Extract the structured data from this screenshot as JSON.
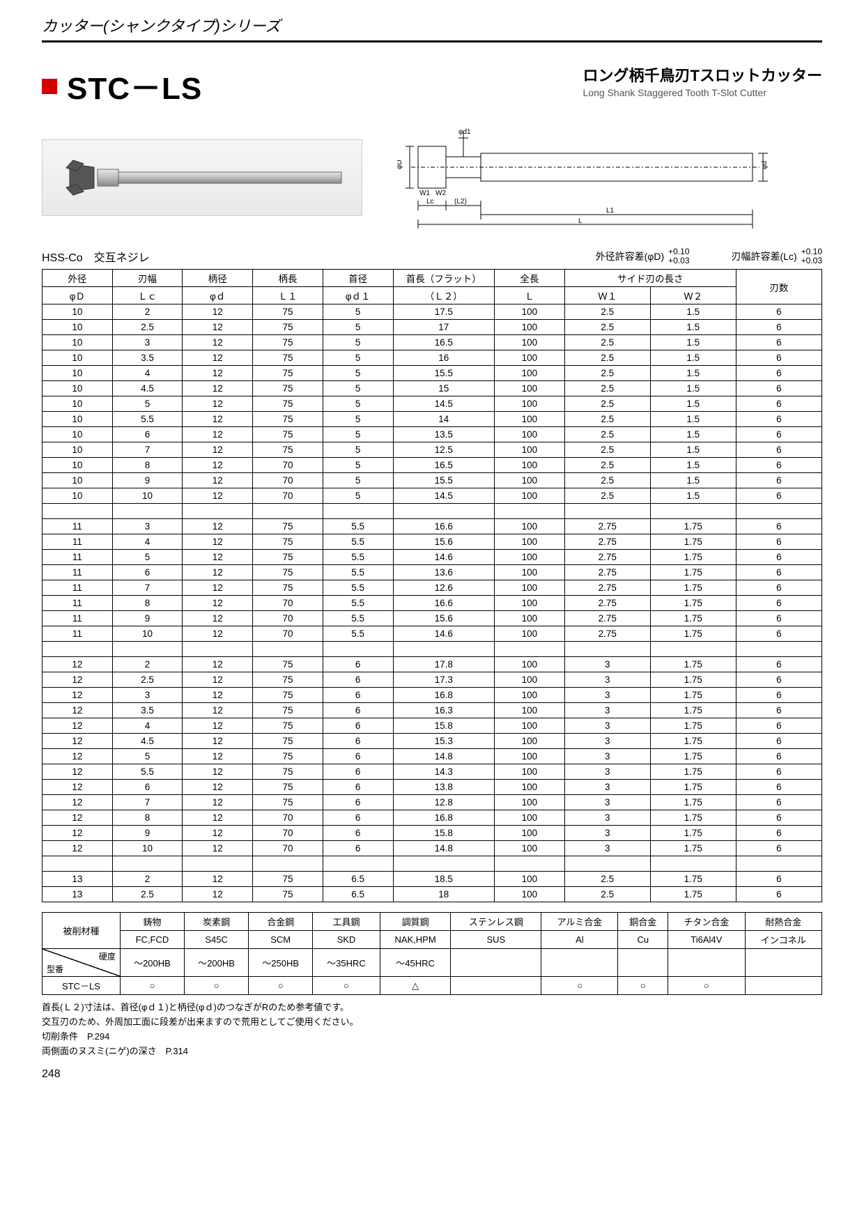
{
  "page_header": "カッター(シャンクタイプ)シリーズ",
  "product_code": "STC－LS",
  "product_name_jp": "ロング柄千鳥刃Tスロットカッター",
  "product_name_en": "Long Shank Staggered Tooth T-Slot Cutter",
  "subhead_left": "HSS-Co　交互ネジレ",
  "tolerance_od_label": "外径許容差(φD)",
  "tolerance_od_upper": "+0.10",
  "tolerance_od_lower": "+0.03",
  "tolerance_lc_label": "刃幅許容差(Lc)",
  "tolerance_lc_upper": "+0.10",
  "tolerance_lc_lower": "+0.03",
  "spec_table": {
    "header_row1": [
      "外径",
      "刃幅",
      "柄径",
      "柄長",
      "首径",
      "首長（フラット）",
      "全長",
      "サイド刃の長さ",
      "",
      "刃数"
    ],
    "header_row2": [
      "φＤ",
      "Ｌｃ",
      "φｄ",
      "Ｌ１",
      "φｄ１",
      "（Ｌ２）",
      "Ｌ",
      "Ｗ１",
      "Ｗ２",
      ""
    ],
    "col_widths": [
      "9%",
      "9%",
      "9%",
      "9%",
      "9%",
      "13%",
      "9%",
      "11%",
      "11%",
      "11%"
    ],
    "groups": [
      [
        [
          "10",
          "2",
          "12",
          "75",
          "5",
          "17.5",
          "100",
          "2.5",
          "1.5",
          "6"
        ],
        [
          "10",
          "2.5",
          "12",
          "75",
          "5",
          "17",
          "100",
          "2.5",
          "1.5",
          "6"
        ],
        [
          "10",
          "3",
          "12",
          "75",
          "5",
          "16.5",
          "100",
          "2.5",
          "1.5",
          "6"
        ],
        [
          "10",
          "3.5",
          "12",
          "75",
          "5",
          "16",
          "100",
          "2.5",
          "1.5",
          "6"
        ],
        [
          "10",
          "4",
          "12",
          "75",
          "5",
          "15.5",
          "100",
          "2.5",
          "1.5",
          "6"
        ],
        [
          "10",
          "4.5",
          "12",
          "75",
          "5",
          "15",
          "100",
          "2.5",
          "1.5",
          "6"
        ],
        [
          "10",
          "5",
          "12",
          "75",
          "5",
          "14.5",
          "100",
          "2.5",
          "1.5",
          "6"
        ],
        [
          "10",
          "5.5",
          "12",
          "75",
          "5",
          "14",
          "100",
          "2.5",
          "1.5",
          "6"
        ],
        [
          "10",
          "6",
          "12",
          "75",
          "5",
          "13.5",
          "100",
          "2.5",
          "1.5",
          "6"
        ],
        [
          "10",
          "7",
          "12",
          "75",
          "5",
          "12.5",
          "100",
          "2.5",
          "1.5",
          "6"
        ],
        [
          "10",
          "8",
          "12",
          "70",
          "5",
          "16.5",
          "100",
          "2.5",
          "1.5",
          "6"
        ],
        [
          "10",
          "9",
          "12",
          "70",
          "5",
          "15.5",
          "100",
          "2.5",
          "1.5",
          "6"
        ],
        [
          "10",
          "10",
          "12",
          "70",
          "5",
          "14.5",
          "100",
          "2.5",
          "1.5",
          "6"
        ]
      ],
      [
        [
          "11",
          "3",
          "12",
          "75",
          "5.5",
          "16.6",
          "100",
          "2.75",
          "1.75",
          "6"
        ],
        [
          "11",
          "4",
          "12",
          "75",
          "5.5",
          "15.6",
          "100",
          "2.75",
          "1.75",
          "6"
        ],
        [
          "11",
          "5",
          "12",
          "75",
          "5.5",
          "14.6",
          "100",
          "2.75",
          "1.75",
          "6"
        ],
        [
          "11",
          "6",
          "12",
          "75",
          "5.5",
          "13.6",
          "100",
          "2.75",
          "1.75",
          "6"
        ],
        [
          "11",
          "7",
          "12",
          "75",
          "5.5",
          "12.6",
          "100",
          "2.75",
          "1.75",
          "6"
        ],
        [
          "11",
          "8",
          "12",
          "70",
          "5.5",
          "16.6",
          "100",
          "2.75",
          "1.75",
          "6"
        ],
        [
          "11",
          "9",
          "12",
          "70",
          "5.5",
          "15.6",
          "100",
          "2.75",
          "1.75",
          "6"
        ],
        [
          "11",
          "10",
          "12",
          "70",
          "5.5",
          "14.6",
          "100",
          "2.75",
          "1.75",
          "6"
        ]
      ],
      [
        [
          "12",
          "2",
          "12",
          "75",
          "6",
          "17.8",
          "100",
          "3",
          "1.75",
          "6"
        ],
        [
          "12",
          "2.5",
          "12",
          "75",
          "6",
          "17.3",
          "100",
          "3",
          "1.75",
          "6"
        ],
        [
          "12",
          "3",
          "12",
          "75",
          "6",
          "16.8",
          "100",
          "3",
          "1.75",
          "6"
        ],
        [
          "12",
          "3.5",
          "12",
          "75",
          "6",
          "16.3",
          "100",
          "3",
          "1.75",
          "6"
        ],
        [
          "12",
          "4",
          "12",
          "75",
          "6",
          "15.8",
          "100",
          "3",
          "1.75",
          "6"
        ],
        [
          "12",
          "4.5",
          "12",
          "75",
          "6",
          "15.3",
          "100",
          "3",
          "1.75",
          "6"
        ],
        [
          "12",
          "5",
          "12",
          "75",
          "6",
          "14.8",
          "100",
          "3",
          "1.75",
          "6"
        ],
        [
          "12",
          "5.5",
          "12",
          "75",
          "6",
          "14.3",
          "100",
          "3",
          "1.75",
          "6"
        ],
        [
          "12",
          "6",
          "12",
          "75",
          "6",
          "13.8",
          "100",
          "3",
          "1.75",
          "6"
        ],
        [
          "12",
          "7",
          "12",
          "75",
          "6",
          "12.8",
          "100",
          "3",
          "1.75",
          "6"
        ],
        [
          "12",
          "8",
          "12",
          "70",
          "6",
          "16.8",
          "100",
          "3",
          "1.75",
          "6"
        ],
        [
          "12",
          "9",
          "12",
          "70",
          "6",
          "15.8",
          "100",
          "3",
          "1.75",
          "6"
        ],
        [
          "12",
          "10",
          "12",
          "70",
          "6",
          "14.8",
          "100",
          "3",
          "1.75",
          "6"
        ]
      ],
      [
        [
          "13",
          "2",
          "12",
          "75",
          "6.5",
          "18.5",
          "100",
          "2.5",
          "1.75",
          "6"
        ],
        [
          "13",
          "2.5",
          "12",
          "75",
          "6.5",
          "18",
          "100",
          "2.5",
          "1.75",
          "6"
        ]
      ]
    ]
  },
  "material_table": {
    "row1_label": "被削材種",
    "row1": [
      "鋳物",
      "炭素鋼",
      "合金鋼",
      "工具鋼",
      "調質鋼",
      "ステンレス鋼",
      "アルミ合金",
      "銅合金",
      "チタン合金",
      "耐熱合金"
    ],
    "row2": [
      "FC,FCD",
      "S45C",
      "SCM",
      "SKD",
      "NAK,HPM",
      "SUS",
      "Al",
      "Cu",
      "Ti6Al4V",
      "インコネル"
    ],
    "diag_top": "硬度",
    "diag_bot": "型番",
    "row3": [
      "～200HB",
      "～200HB",
      "～250HB",
      "～35HRC",
      "～45HRC",
      "",
      "",
      "",
      "",
      ""
    ],
    "row4_label": "STC－LS",
    "row4": [
      "○",
      "○",
      "○",
      "○",
      "△",
      "",
      "○",
      "○",
      "○",
      ""
    ]
  },
  "notes": [
    "首長(Ｌ２)寸法は、首径(φｄ１)と柄径(φｄ)のつなぎがRのため参考値です。",
    "交互刃のため、外周加工面に段差が出来ますので荒用としてご使用ください。",
    "切削条件　P.294",
    "両側面のヌスミ(ニゲ)の深さ　P.314"
  ],
  "page_number": "248",
  "diagram": {
    "labels": [
      "φD",
      "φd1",
      "φd",
      "W1",
      "W2",
      "Lc",
      "(L2)",
      "L1",
      "L"
    ],
    "stroke": "#000000"
  }
}
